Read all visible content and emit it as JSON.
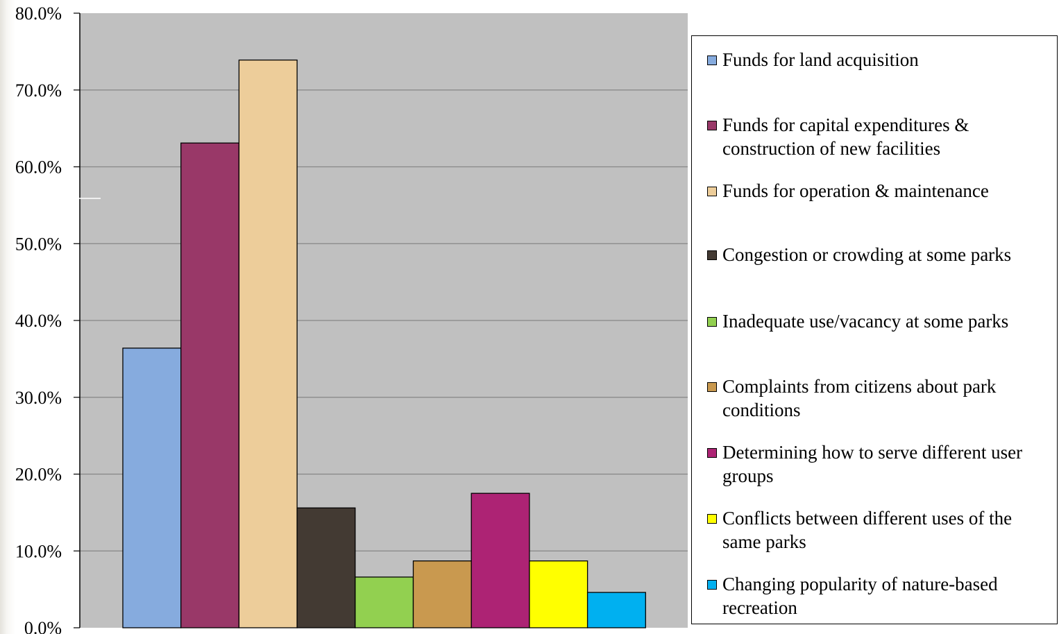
{
  "chart_data": {
    "type": "bar",
    "title": "",
    "xlabel": "",
    "ylabel": "",
    "ylim": [
      0,
      80
    ],
    "y_tick_format": "percent_1dp",
    "yticks": [
      "0.0%",
      "10.0%",
      "20.0%",
      "30.0%",
      "40.0%",
      "50.0%",
      "60.0%",
      "70.0%",
      "80.0%"
    ],
    "grid": true,
    "legend_position": "right",
    "categories": [
      "Funds for land acquisition",
      "Funds for capital expenditures & construction of new facilities",
      "Funds for operation & maintenance",
      "Congestion or crowding at some parks",
      "Inadequate use/vacancy at some parks",
      "Complaints from citizens about park conditions",
      "Determining how to serve different user groups",
      "Conflicts between different uses of the same parks",
      "Changing popularity of nature-based recreation"
    ],
    "values": [
      36.4,
      63.1,
      73.9,
      15.6,
      6.6,
      8.7,
      17.5,
      8.7,
      4.6
    ],
    "colors": [
      "#86ABDE",
      "#993868",
      "#EDCD9A",
      "#433A33",
      "#92D050",
      "#C9994F",
      "#AD2374",
      "#FFFF00",
      "#00B0F0"
    ],
    "plot_background": "#C0C0C0",
    "legend": [
      {
        "lines": [
          "Funds for land acquisition"
        ],
        "color": "#86ABDE"
      },
      {
        "lines": [
          "Funds for capital expenditures &",
          "construction of new facilities"
        ],
        "color": "#993868"
      },
      {
        "lines": [
          "Funds for operation & maintenance"
        ],
        "color": "#EDCD9A"
      },
      {
        "lines": [
          "Congestion or crowding at some parks"
        ],
        "color": "#433A33"
      },
      {
        "lines": [
          "Inadequate use/vacancy at some parks"
        ],
        "color": "#92D050"
      },
      {
        "lines": [
          "Complaints from citizens about park",
          "conditions"
        ],
        "color": "#C9994F"
      },
      {
        "lines": [
          "Determining how to serve different user",
          "groups"
        ],
        "color": "#AD2374"
      },
      {
        "lines": [
          "Conflicts between different uses of the",
          "same parks"
        ],
        "color": "#FFFF00"
      },
      {
        "lines": [
          "Changing popularity of nature-based",
          "recreation"
        ],
        "color": "#00B0F0"
      }
    ]
  }
}
